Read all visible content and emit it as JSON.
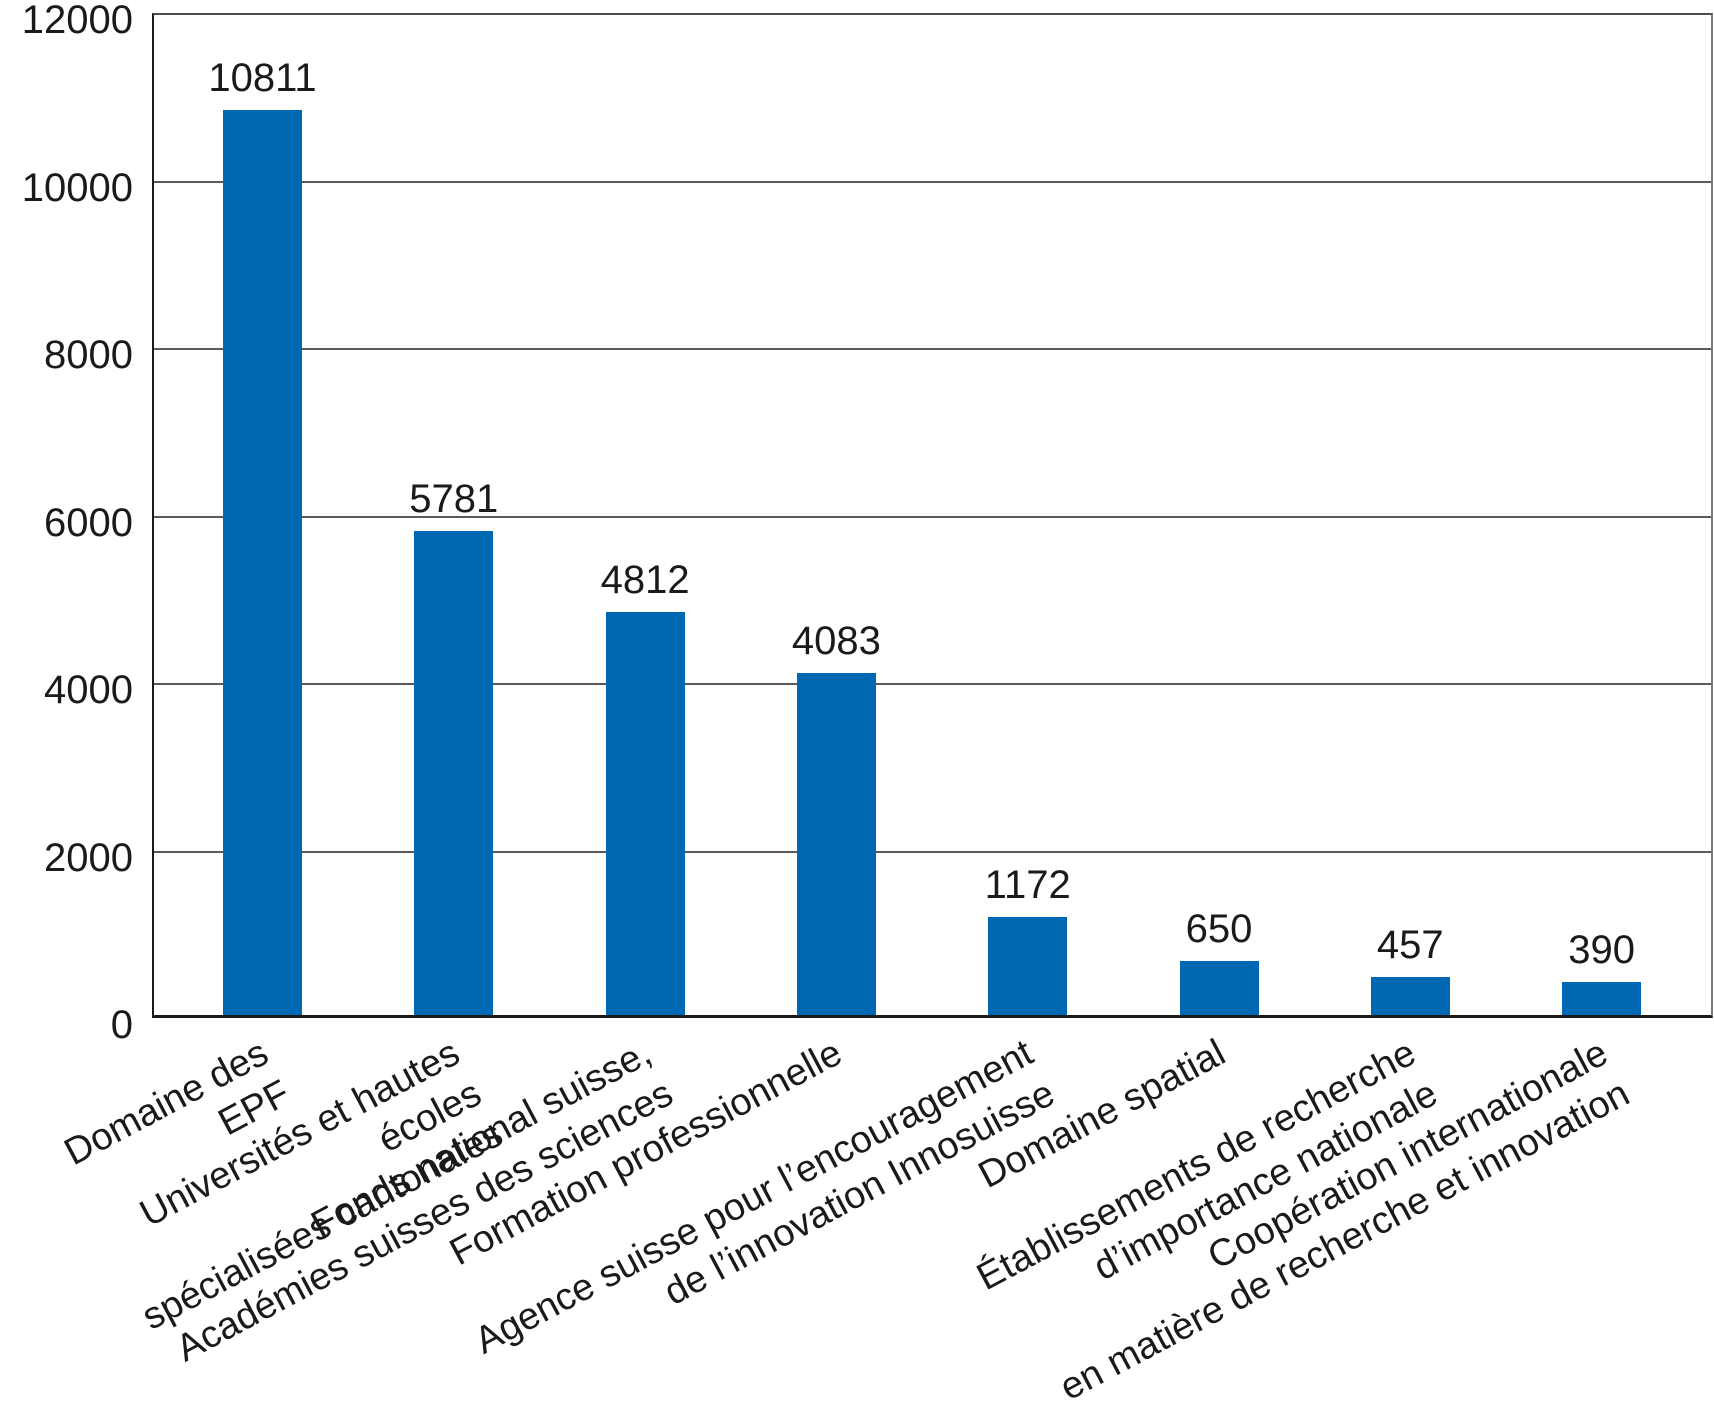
{
  "chart_data": {
    "type": "bar",
    "title": "",
    "xlabel": "",
    "ylabel": "",
    "categories": [
      "Domaine des EPF",
      "Universités et hautes écoles\nspécialisées cantonales",
      "Fonds national suisse,\nAcadémies suisses des sciences",
      "Formation professionnelle",
      "Agence suisse pour l’encouragement\nde l’innovation Innosuisse",
      "Domaine spatial",
      "Établissements de recherche\nd’importance nationale",
      "Coopération internationale\nen matière de recherche et innovation"
    ],
    "values": [
      10811,
      5781,
      4812,
      4083,
      1172,
      650,
      457,
      390
    ],
    "value_labels": [
      "10811",
      "5781",
      "4812",
      "4083",
      "1172",
      "650",
      "457",
      "390"
    ],
    "ylim": [
      0,
      12000
    ],
    "yticks": [
      0,
      2000,
      4000,
      6000,
      8000,
      10000,
      12000
    ],
    "grid": true,
    "legend": false,
    "x_label_rotation_deg": -28,
    "colors": {
      "bar": "#0068b2",
      "text": "#1a1a1a",
      "gridline": "#5a5a5a",
      "axis": "#1a1a1a"
    }
  }
}
